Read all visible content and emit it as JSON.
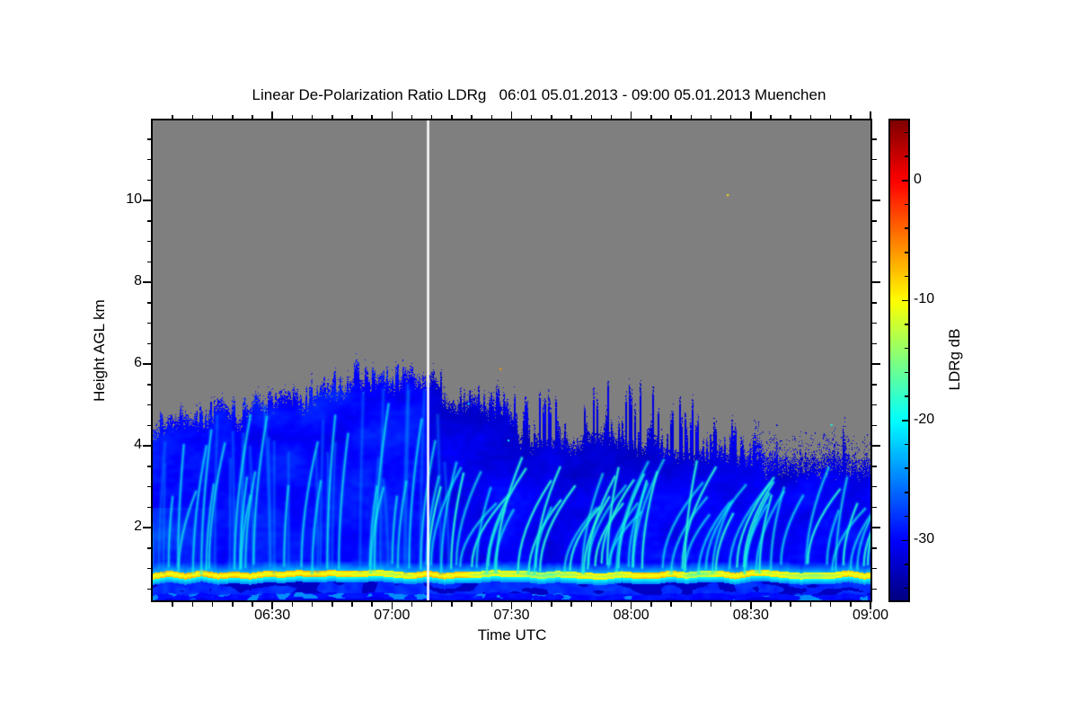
{
  "title": "Linear De-Polarization Ratio LDRg   06:01 05.01.2013 - 09:00 05.01.2013 Muenchen",
  "axes": {
    "x": {
      "label": "Time UTC",
      "major_ticks": [
        {
          "label": "06:30",
          "minute": 30
        },
        {
          "label": "07:00",
          "minute": 60
        },
        {
          "label": "07:30",
          "minute": 90
        },
        {
          "label": "08:00",
          "minute": 120
        },
        {
          "label": "08:30",
          "minute": 150
        },
        {
          "label": "09:00",
          "minute": 180
        }
      ],
      "minor_step_min": 5,
      "range_min": [
        0,
        180
      ]
    },
    "y": {
      "label": "Height AGL km",
      "major_ticks": [
        {
          "label": "2",
          "km": 2
        },
        {
          "label": "4",
          "km": 4
        },
        {
          "label": "6",
          "km": 6
        },
        {
          "label": "8",
          "km": 8
        },
        {
          "label": "10",
          "km": 10
        }
      ],
      "minor_step_km": 0.5,
      "range_km": [
        0.24,
        11.96
      ]
    }
  },
  "colorbar": {
    "label": "LDRg dB",
    "range_db": [
      -35,
      5
    ],
    "major_ticks": [
      {
        "label": "0",
        "value": 0
      },
      {
        "label": "-10",
        "value": -10
      },
      {
        "label": "-20",
        "value": -20
      },
      {
        "label": "-30",
        "value": -30
      }
    ],
    "minor_step_db": 2,
    "colormap": "jet"
  },
  "chart_data": {
    "type": "heatmap",
    "title": "Linear De-Polarization Ratio LDRg",
    "site": "Muenchen",
    "time_span": "06:01 05.01.2013 - 09:00 05.01.2013",
    "xlabel": "Time UTC",
    "ylabel": "Height AGL km",
    "value_label": "LDRg dB",
    "value_range_db": [
      -35,
      5
    ],
    "colormap": "jet",
    "no_data_color": "#7e7e7e",
    "data_gap_line": {
      "time": "07:09",
      "minute": 69,
      "color": "#ffffff"
    },
    "cloud_body_db": -30,
    "fall_streak_db": -20.5,
    "bright_band": {
      "height_km": 0.85,
      "peak_db_by_minute": [
        [
          0,
          -11.3
        ],
        [
          12,
          -11
        ],
        [
          24,
          -11.2
        ],
        [
          34,
          -11
        ],
        [
          44,
          -11.4
        ],
        [
          56,
          -12.8
        ],
        [
          61,
          -13.6
        ],
        [
          65,
          -12.2
        ],
        [
          69,
          -10.8
        ],
        [
          74,
          -11.3
        ],
        [
          79,
          -12
        ],
        [
          83,
          -14.8
        ],
        [
          87,
          -13
        ],
        [
          91,
          -14
        ],
        [
          95,
          -15.8
        ],
        [
          100,
          -16.4
        ],
        [
          104,
          -14
        ],
        [
          108,
          -12.2
        ],
        [
          112,
          -13
        ],
        [
          116,
          -13.4
        ],
        [
          120,
          -11.4
        ],
        [
          126,
          -10.9
        ],
        [
          131,
          -11.8
        ],
        [
          135,
          -15.3
        ],
        [
          139,
          -15
        ],
        [
          143,
          -12.2
        ],
        [
          149,
          -11.4
        ],
        [
          154,
          -12.4
        ],
        [
          158,
          -13
        ],
        [
          162,
          -14.8
        ],
        [
          166,
          -15.4
        ],
        [
          170,
          -13
        ],
        [
          174,
          -11.4
        ],
        [
          180,
          -11.3
        ]
      ]
    },
    "cloud_top_km_by_minute": [
      [
        0,
        4.4
      ],
      [
        7,
        4.75
      ],
      [
        13,
        4.57
      ],
      [
        18,
        5.05
      ],
      [
        21,
        4.57
      ],
      [
        26,
        5.12
      ],
      [
        29,
        4.97
      ],
      [
        34,
        5.27
      ],
      [
        38,
        4.97
      ],
      [
        43,
        5.45
      ],
      [
        47,
        5.23
      ],
      [
        51,
        5.78
      ],
      [
        54,
        5.45
      ],
      [
        57,
        5.71
      ],
      [
        61,
        5.49
      ],
      [
        64,
        5.85
      ],
      [
        68,
        5.45
      ],
      [
        70,
        5.78
      ],
      [
        73,
        5.12
      ],
      [
        77,
        4.97
      ],
      [
        80,
        5.23
      ],
      [
        84,
        4.9
      ],
      [
        87,
        5.05
      ],
      [
        90,
        4.57
      ],
      [
        92,
        4.13
      ],
      [
        97,
        4.09
      ],
      [
        101,
        4.18
      ],
      [
        106,
        4.04
      ],
      [
        110,
        4.35
      ],
      [
        115,
        4.24
      ],
      [
        119,
        4.13
      ],
      [
        123,
        3.96
      ],
      [
        126,
        4.02
      ],
      [
        130,
        3.91
      ],
      [
        133,
        3.87
      ],
      [
        137,
        3.8
      ],
      [
        142,
        3.91
      ],
      [
        146,
        3.74
      ],
      [
        151,
        3.8
      ],
      [
        155,
        3.69
      ],
      [
        160,
        3.74
      ],
      [
        164,
        3.65
      ],
      [
        169,
        3.69
      ],
      [
        173,
        3.74
      ],
      [
        177,
        3.65
      ],
      [
        180,
        3.69
      ]
    ],
    "spike_top_km_by_minute": [
      [
        0,
        5.0
      ],
      [
        13,
        5.1
      ],
      [
        18,
        5.35
      ],
      [
        29,
        5.45
      ],
      [
        38,
        5.6
      ],
      [
        43,
        6.0
      ],
      [
        51,
        6.2
      ],
      [
        55,
        6.0
      ],
      [
        61,
        6.1
      ],
      [
        65,
        6.2
      ],
      [
        68,
        5.8
      ],
      [
        70,
        5.95
      ],
      [
        73,
        5.9
      ],
      [
        79,
        5.5
      ],
      [
        84,
        5.6
      ],
      [
        90,
        5.6
      ],
      [
        93,
        5.3
      ],
      [
        95,
        5.45
      ],
      [
        102,
        5.3
      ],
      [
        106,
        5.45
      ],
      [
        110,
        5.6
      ],
      [
        115,
        5.65
      ],
      [
        120,
        5.7
      ],
      [
        124,
        5.7
      ],
      [
        128,
        5.5
      ],
      [
        132,
        5.3
      ],
      [
        137,
        5.2
      ],
      [
        141,
        5.1
      ],
      [
        146,
        4.7
      ],
      [
        151,
        4.5
      ],
      [
        156,
        4.2
      ],
      [
        160,
        4.1
      ],
      [
        164,
        4.0
      ],
      [
        168,
        3.9
      ],
      [
        171,
        4.3
      ],
      [
        172.5,
        5.6
      ],
      [
        174,
        4.2
      ],
      [
        177,
        3.9
      ],
      [
        180,
        3.9
      ]
    ],
    "fall_streak_clusters_min": [
      [
        0,
        20,
        0.6
      ],
      [
        20,
        40,
        0.75
      ],
      [
        40,
        68,
        0.85
      ],
      [
        68,
        80,
        0.6
      ],
      [
        80,
        95,
        0.75
      ],
      [
        95,
        113,
        1.0
      ],
      [
        113,
        131,
        1.0
      ],
      [
        131,
        146,
        0.7
      ],
      [
        146,
        164,
        0.8
      ],
      [
        164,
        180,
        0.85
      ]
    ],
    "noise_specks": [
      [
        144,
        10.15,
        -9
      ],
      [
        87,
        5.9,
        -6
      ],
      [
        89,
        4.15,
        -20
      ],
      [
        170,
        4.53,
        -19
      ],
      [
        79,
        5.05,
        -20
      ]
    ]
  }
}
